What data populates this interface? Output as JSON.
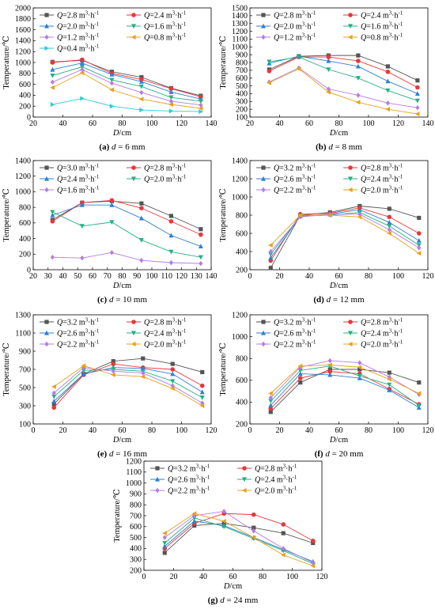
{
  "panels": [
    {
      "caption_letter": "(a)",
      "caption_rest": " d = 6 mm",
      "chart_data": {
        "type": "line",
        "xlabel": "D/cm",
        "ylabel": "Temperature/℃",
        "xlim": [
          20,
          140
        ],
        "xticks": [
          20,
          40,
          60,
          80,
          100,
          120,
          140
        ],
        "ylim": [
          0,
          2000
        ],
        "yticks": [
          0,
          200,
          400,
          600,
          800,
          1000,
          1200,
          1400,
          1600,
          1800,
          2000
        ],
        "legend_cols": 2,
        "legend_placement": "top",
        "x": [
          33,
          53,
          73,
          93,
          113,
          133
        ],
        "series": [
          {
            "name": "Q=2.8 m³·h⁻¹",
            "values": [
              1010,
              1040,
              830,
              730,
              530,
              390
            ]
          },
          {
            "name": "Q=2.4 m³·h⁻¹",
            "values": [
              1000,
              1050,
              800,
              690,
              520,
              370
            ]
          },
          {
            "name": "Q=2.0 m³·h⁻¹",
            "values": [
              870,
              990,
              780,
              650,
              460,
              330
            ]
          },
          {
            "name": "Q=1.6 m³·h⁻¹",
            "values": [
              760,
              920,
              680,
              560,
              360,
              290
            ]
          },
          {
            "name": "Q=1.2 m³·h⁻¹",
            "values": [
              640,
              870,
              620,
              450,
              290,
              220
            ]
          },
          {
            "name": "Q=0.8 m³·h⁻¹",
            "values": [
              540,
              810,
              500,
              330,
              230,
              160
            ]
          },
          {
            "name": "Q=0.4 m³·h⁻¹",
            "values": [
              230,
              340,
              200,
              130,
              110,
              100
            ]
          }
        ]
      }
    },
    {
      "caption_letter": "(b)",
      "caption_rest": " d = 8 mm",
      "chart_data": {
        "type": "line",
        "xlabel": "D/cm",
        "ylabel": "Temperature/℃",
        "xlim": [
          20,
          140
        ],
        "xticks": [
          20,
          40,
          60,
          80,
          100,
          120,
          140
        ],
        "ylim": [
          100,
          1500
        ],
        "yticks": [
          100,
          200,
          300,
          400,
          500,
          600,
          700,
          800,
          900,
          1000,
          1100,
          1200,
          1300,
          1400,
          1500
        ],
        "legend_cols": 2,
        "legend_placement": "top",
        "x": [
          33,
          53,
          73,
          93,
          113,
          133
        ],
        "series": [
          {
            "name": "Q=2.8 m³·h⁻¹",
            "values": [
              710,
              880,
              890,
              890,
              750,
              570
            ]
          },
          {
            "name": "Q=2.4 m³·h⁻¹",
            "values": [
              690,
              870,
              870,
              820,
              680,
              480
            ]
          },
          {
            "name": "Q=2.0 m³·h⁻¹",
            "values": [
              790,
              880,
              820,
              750,
              560,
              400
            ]
          },
          {
            "name": "Q=1.6 m³·h⁻¹",
            "values": [
              810,
              870,
              710,
              600,
              440,
              310
            ]
          },
          {
            "name": "Q=1.2 m³·h⁻¹",
            "values": [
              550,
              730,
              460,
              380,
              280,
              220
            ]
          },
          {
            "name": "Q=0.8 m³·h⁻¹",
            "values": [
              540,
              720,
              420,
              290,
              200,
              140
            ]
          }
        ]
      }
    },
    {
      "caption_letter": "(c)",
      "caption_rest": " d = 10 mm",
      "chart_data": {
        "type": "line",
        "xlabel": "D/cm",
        "ylabel": "Temperature/℃",
        "xlim": [
          20,
          140
        ],
        "xticks": [
          20,
          30,
          40,
          50,
          60,
          70,
          80,
          90,
          100,
          110,
          120,
          130,
          140
        ],
        "ylim": [
          0,
          1400
        ],
        "yticks": [
          0,
          200,
          400,
          600,
          800,
          1000,
          1200,
          1400
        ],
        "legend_cols": 2,
        "legend_placement": "top",
        "x": [
          33,
          53,
          73,
          93,
          113,
          133
        ],
        "series": [
          {
            "name": "Q=3.0 m³·h⁻¹",
            "values": [
              640,
              860,
              880,
              850,
              690,
              520
            ]
          },
          {
            "name": "Q=2.8 m³·h⁻¹",
            "values": [
              620,
              860,
              890,
              790,
              620,
              450
            ]
          },
          {
            "name": "Q=2.4 m³·h⁻¹",
            "values": [
              700,
              830,
              830,
              660,
              440,
              300
            ]
          },
          {
            "name": "Q=2.0 m³·h⁻¹",
            "values": [
              740,
              560,
              610,
              380,
              230,
              160
            ]
          },
          {
            "name": "Q=1.6 m³·h⁻¹",
            "values": [
              160,
              150,
              220,
              120,
              90,
              80
            ]
          }
        ]
      }
    },
    {
      "caption_letter": "(d)",
      "caption_rest": " d = 12 mm",
      "chart_data": {
        "type": "line",
        "xlabel": "D/cm",
        "ylabel": "Temperature/℃",
        "xlim": [
          0,
          120
        ],
        "xticks": [
          0,
          20,
          40,
          60,
          80,
          100,
          120
        ],
        "ylim": [
          200,
          1400
        ],
        "yticks": [
          200,
          400,
          600,
          800,
          1000,
          1200,
          1400
        ],
        "legend_cols": 2,
        "legend_placement": "top",
        "x": [
          14,
          34,
          54,
          74,
          94,
          114
        ],
        "series": [
          {
            "name": "Q=3.2 m³·h⁻¹",
            "values": [
              220,
              800,
              830,
              900,
              870,
              770
            ]
          },
          {
            "name": "Q=2.8 m³·h⁻¹",
            "values": [
              300,
              810,
              820,
              880,
              780,
              600
            ]
          },
          {
            "name": "Q=2.6 m³·h⁻¹",
            "values": [
              330,
              790,
              810,
              860,
              720,
              520
            ]
          },
          {
            "name": "Q=2.4 m³·h⁻¹",
            "values": [
              370,
              790,
              800,
              830,
              680,
              470
            ]
          },
          {
            "name": "Q=2.2 m³·h⁻¹",
            "values": [
              400,
              780,
              810,
              810,
              640,
              440
            ]
          },
          {
            "name": "Q=2.0 m³·h⁻¹",
            "values": [
              470,
              800,
              800,
              780,
              600,
              380
            ]
          }
        ]
      }
    },
    {
      "caption_letter": "(e)",
      "caption_rest": " d = 16 mm",
      "chart_data": {
        "type": "line",
        "xlabel": "D/cm",
        "ylabel": "Temperature/℃",
        "xlim": [
          0,
          120
        ],
        "xticks": [
          0,
          20,
          40,
          60,
          80,
          100,
          120
        ],
        "ylim": [
          100,
          1300
        ],
        "yticks": [
          100,
          300,
          500,
          700,
          900,
          1100,
          1300
        ],
        "legend_cols": 2,
        "legend_placement": "top",
        "x": [
          14,
          34,
          54,
          74,
          94,
          114
        ],
        "series": [
          {
            "name": "Q=3.2 m³·h⁻¹",
            "values": [
              320,
              650,
              790,
              820,
              760,
              670
            ]
          },
          {
            "name": "Q=2.8 m³·h⁻¹",
            "values": [
              280,
              640,
              760,
              720,
              700,
              520
            ]
          },
          {
            "name": "Q=2.6 m³·h⁻¹",
            "values": [
              350,
              650,
              720,
              710,
              650,
              450
            ]
          },
          {
            "name": "Q=2.4 m³·h⁻¹",
            "values": [
              400,
              690,
              700,
              680,
              570,
              390
            ]
          },
          {
            "name": "Q=2.2 m³·h⁻¹",
            "values": [
              440,
              720,
              680,
              660,
              520,
              330
            ]
          },
          {
            "name": "Q=2.0 m³·h⁻¹",
            "values": [
              510,
              740,
              640,
              620,
              490,
              300
            ]
          }
        ]
      }
    },
    {
      "caption_letter": "(f)",
      "caption_rest": " d = 20 mm",
      "chart_data": {
        "type": "line",
        "xlabel": "D/cm",
        "ylabel": "Temperature/℃",
        "xlim": [
          0,
          120
        ],
        "xticks": [
          0,
          20,
          40,
          60,
          80,
          100,
          120
        ],
        "ylim": [
          200,
          1200
        ],
        "yticks": [
          200,
          400,
          600,
          800,
          1000,
          1200
        ],
        "legend_cols": 2,
        "legend_placement": "top",
        "x": [
          14,
          34,
          54,
          74,
          94,
          114
        ],
        "series": [
          {
            "name": "Q=3.2 m³·h⁻¹",
            "values": [
              310,
              580,
              700,
              700,
              670,
              580
            ]
          },
          {
            "name": "Q=2.8 m³·h⁻¹",
            "values": [
              340,
              620,
              680,
              660,
              520,
              380
            ]
          },
          {
            "name": "Q=2.6 m³·h⁻¹",
            "values": [
              370,
              660,
              650,
              620,
              510,
              350
            ]
          },
          {
            "name": "Q=2.4 m³·h⁻¹",
            "values": [
              410,
              690,
              730,
              640,
              560,
              370
            ]
          },
          {
            "name": "Q=2.2 m³·h⁻¹",
            "values": [
              440,
              720,
              780,
              760,
              630,
              470
            ]
          },
          {
            "name": "Q=2.0 m³·h⁻¹",
            "values": [
              480,
              730,
              740,
              720,
              610,
              480
            ]
          }
        ]
      }
    },
    {
      "caption_letter": "(g)",
      "caption_rest": " d = 24 mm",
      "chart_data": {
        "type": "line",
        "xlabel": "D/cm",
        "ylabel": "Temperature/℃",
        "xlim": [
          0,
          120
        ],
        "xticks": [
          0,
          20,
          40,
          60,
          80,
          100,
          120
        ],
        "ylim": [
          200,
          1200
        ],
        "yticks": [
          200,
          300,
          400,
          500,
          600,
          700,
          800,
          900,
          1000,
          1100,
          1200
        ],
        "legend_cols": 2,
        "legend_placement": "top",
        "x": [
          14,
          34,
          54,
          74,
          94,
          114
        ],
        "series": [
          {
            "name": "Q=3.2 m³·h⁻¹",
            "values": [
              360,
              610,
              630,
              590,
              540,
              450
            ]
          },
          {
            "name": "Q=2.8 m³·h⁻¹",
            "values": [
              400,
              630,
              720,
              710,
              620,
              470
            ]
          },
          {
            "name": "Q=2.6 m³·h⁻¹",
            "values": [
              420,
              650,
              610,
              500,
              390,
              280
            ]
          },
          {
            "name": "Q=2.4 m³·h⁻¹",
            "values": [
              450,
              680,
              600,
              490,
              380,
              260
            ]
          },
          {
            "name": "Q=2.2 m³·h⁻¹",
            "values": [
              500,
              700,
              740,
              560,
              400,
              270
            ]
          },
          {
            "name": "Q=2.0 m³·h⁻¹",
            "values": [
              540,
              720,
              650,
              500,
              340,
              240
            ]
          }
        ]
      }
    }
  ],
  "series_styles": [
    {
      "color": "#555555",
      "marker": "square"
    },
    {
      "color": "#e8373b",
      "marker": "circle"
    },
    {
      "color": "#2f7fd6",
      "marker": "triangle-up"
    },
    {
      "color": "#27b082",
      "marker": "triangle-down"
    },
    {
      "color": "#b57be6",
      "marker": "diamond"
    },
    {
      "color": "#e7a21b",
      "marker": "triangle-left"
    },
    {
      "color": "#2fcbd6",
      "marker": "triangle-right"
    }
  ]
}
